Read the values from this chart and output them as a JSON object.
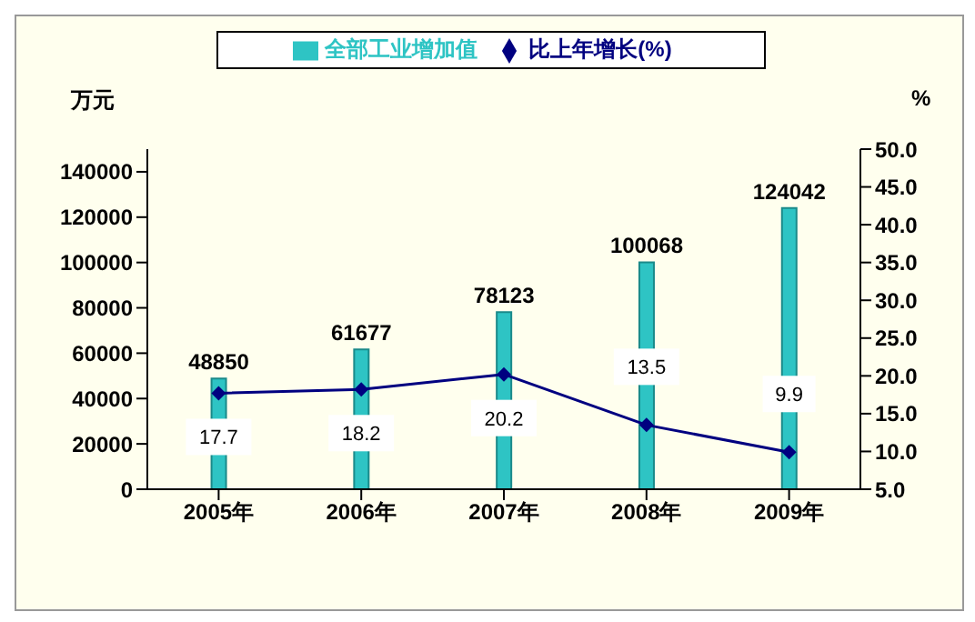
{
  "chart_data": {
    "type": "bar",
    "categories": [
      "2005年",
      "2006年",
      "2007年",
      "2008年",
      "2009年"
    ],
    "ylabel": "万元",
    "y2label": "%",
    "series": [
      {
        "name": "全部工业增加值",
        "color": "#2ec4c4",
        "values": [
          48850,
          61677,
          78123,
          100068,
          124042
        ]
      },
      {
        "name": "比上年增长(%)",
        "type": "line",
        "axis": "y2",
        "color": "#000080",
        "values": [
          17.7,
          18.2,
          20.2,
          13.5,
          9.9
        ]
      }
    ],
    "ylim": [
      0,
      150000
    ],
    "yticks": [
      0,
      20000,
      40000,
      60000,
      80000,
      100000,
      120000,
      140000
    ],
    "y2lim": [
      5,
      50
    ],
    "y2ticks": [
      {
        "value": 5,
        "label": "5.0"
      },
      {
        "value": 10,
        "label": "10.0"
      },
      {
        "value": 15,
        "label": "15.0"
      },
      {
        "value": 20,
        "label": "20.0"
      },
      {
        "value": 25,
        "label": "25.0"
      },
      {
        "value": 30,
        "label": "30.0"
      },
      {
        "value": 35,
        "label": "35.0"
      },
      {
        "value": 40,
        "label": "40.0"
      },
      {
        "value": 45,
        "label": "45.0"
      },
      {
        "value": 50,
        "label": "50.0"
      }
    ],
    "data_labels": true,
    "legend": "top",
    "grid": false,
    "marker": "diamond",
    "line_style": "solid"
  }
}
